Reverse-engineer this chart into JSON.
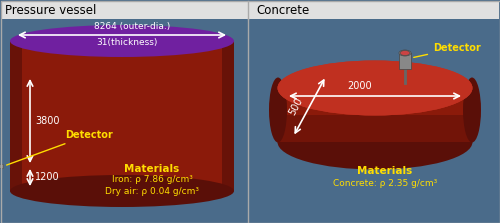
{
  "fig_width": 5.0,
  "fig_height": 2.23,
  "dpi": 100,
  "bg_color": "#4a6b8a",
  "title_bg": "#e8e8e8",
  "left_panel": {
    "title": "Pressure vessel",
    "title_color": "black",
    "title_fontsize": 8.5,
    "cylinder_body_color": "#8b1a0a",
    "cylinder_side_dark": "#5a0f08",
    "cylinder_top_color": "#7020a0",
    "dim_8264": "8264 (outer-dia.)",
    "dim_31": "31(thickness)",
    "dim_3800": "3800",
    "dim_1200": "1200",
    "detector_label": "Detector",
    "mat_label": "Materials",
    "mat_iron": "Iron: ρ 7.86 g/cm³",
    "mat_air": "Dry air: ρ 0.04 g/cm³",
    "ann_color": "white",
    "det_color": "#ffdd00",
    "mat_color": "#ffdd00"
  },
  "right_panel": {
    "title": "Concrete",
    "title_color": "black",
    "title_fontsize": 8.5,
    "body_color": "#8b1a0a",
    "body_dark": "#5a0f08",
    "dim_2000": "2000",
    "dim_500": "500",
    "detector_label": "Detector",
    "mat_label": "Materials",
    "mat_concrete": "Concrete: ρ 2.35 g/cm³",
    "ann_color": "white",
    "det_color": "#ffdd00",
    "mat_color": "#ffdd00"
  }
}
